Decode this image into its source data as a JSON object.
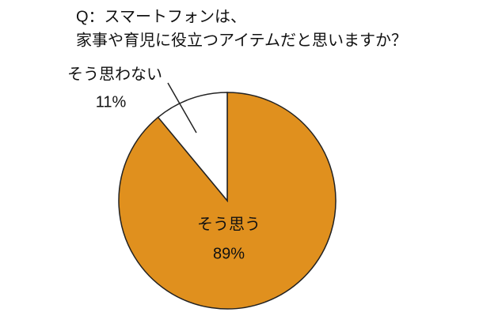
{
  "chart_data": {
    "type": "pie",
    "title": [
      "Q：スマートフォンは、",
      "家事や育児に役立つアイテムだと思いますか？"
    ],
    "categories": [
      "そう思う",
      "そう思わない"
    ],
    "values": [
      89,
      11
    ],
    "value_labels": [
      "89%",
      "11%"
    ],
    "colors": [
      "#e0901e",
      "#ffffff"
    ]
  }
}
